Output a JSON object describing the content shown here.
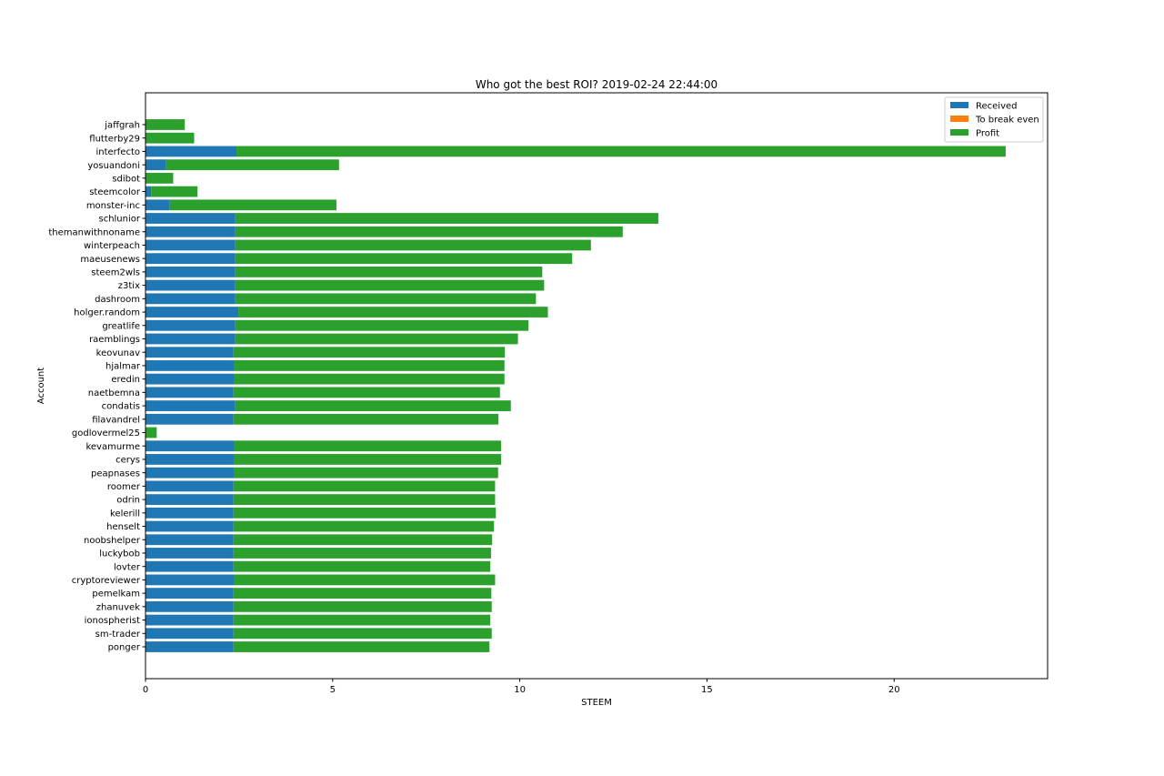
{
  "chart_data": {
    "type": "bar",
    "orientation": "horizontal",
    "stacked": true,
    "title": "Who got the best ROI? 2019-02-24 22:44:00",
    "xlabel": "STEEM",
    "ylabel": "Account",
    "xlim": [
      0,
      24.1
    ],
    "xticks": [
      0,
      5,
      10,
      15,
      20
    ],
    "grid": false,
    "legend_position": "top-right",
    "categories": [
      "jaffgrah",
      "flutterby29",
      "interfecto",
      "yosuandoni",
      "sdibot",
      "steemcolor",
      "monster-inc",
      "schlunior",
      "themanwithnoname",
      "winterpeach",
      "maeusenews",
      "steem2wls",
      "z3tix",
      "dashroom",
      "holger.random",
      "greatlife",
      "raemblings",
      "keovunav",
      "hjalmar",
      "eredin",
      "naetbemna",
      "condatis",
      "filavandrel",
      "godlovermel25",
      "kevamurme",
      "cerys",
      "peapnases",
      "roomer",
      "odrin",
      "kelerill",
      "henselt",
      "noobshelper",
      "luckybob",
      "lovter",
      "cryptoreviewer",
      "pemelkam",
      "zhanuvek",
      "ionospherist",
      "sm-trader",
      "ponger"
    ],
    "series": [
      {
        "name": "Received",
        "color": "#1f77b4",
        "values": [
          0.0,
          0.0,
          2.43,
          0.55,
          0.0,
          0.15,
          0.65,
          2.4,
          2.4,
          2.4,
          2.4,
          2.4,
          2.4,
          2.4,
          2.48,
          2.4,
          2.4,
          2.35,
          2.37,
          2.37,
          2.35,
          2.4,
          2.35,
          0.0,
          2.37,
          2.37,
          2.37,
          2.35,
          2.35,
          2.35,
          2.35,
          2.35,
          2.35,
          2.35,
          2.37,
          2.35,
          2.35,
          2.35,
          2.35,
          2.35
        ]
      },
      {
        "name": "To break even",
        "color": "#ff7f0e",
        "values": [
          0,
          0,
          0,
          0,
          0,
          0,
          0,
          0,
          0,
          0,
          0,
          0,
          0,
          0,
          0,
          0,
          0,
          0,
          0,
          0,
          0,
          0,
          0,
          0,
          0,
          0,
          0,
          0,
          0,
          0,
          0,
          0,
          0,
          0,
          0,
          0,
          0,
          0,
          0,
          0
        ]
      },
      {
        "name": "Profit",
        "color": "#2ca02c",
        "values": [
          1.05,
          1.3,
          20.55,
          4.62,
          0.74,
          1.24,
          4.45,
          11.3,
          10.35,
          9.5,
          9.0,
          8.2,
          8.25,
          8.03,
          8.27,
          7.83,
          7.55,
          7.25,
          7.22,
          7.22,
          7.12,
          7.36,
          7.08,
          0.3,
          7.13,
          7.13,
          7.05,
          6.99,
          6.99,
          7.01,
          6.96,
          6.91,
          6.88,
          6.86,
          6.97,
          6.89,
          6.9,
          6.86,
          6.9,
          6.84
        ]
      }
    ]
  }
}
